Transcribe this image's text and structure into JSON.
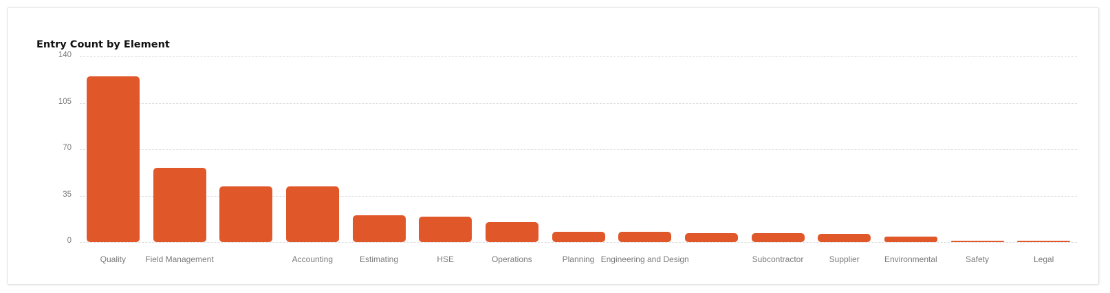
{
  "card": {
    "title": "Entry Count by Element"
  },
  "colors": {
    "bar": "#e0572a",
    "grid": "#dedede",
    "axis_text": "#7a7a7a"
  },
  "chart_data": {
    "type": "bar",
    "title": "Entry Count by Element",
    "xlabel": "",
    "ylabel": "",
    "ylim": [
      0,
      140
    ],
    "yticks": [
      0,
      35,
      70,
      105,
      140
    ],
    "grid": true,
    "legend": null,
    "categories": [
      "Quality",
      "Field Management",
      "",
      "Accounting",
      "Estimating",
      "HSE",
      "Operations",
      "Planning",
      "Engineering and Design",
      "",
      "Subcontractor",
      "Supplier",
      "Environmental",
      "Safety",
      "Legal"
    ],
    "values": [
      125,
      56,
      42,
      42,
      20,
      19,
      15,
      8,
      8,
      7,
      7,
      6,
      4,
      1,
      1
    ]
  }
}
